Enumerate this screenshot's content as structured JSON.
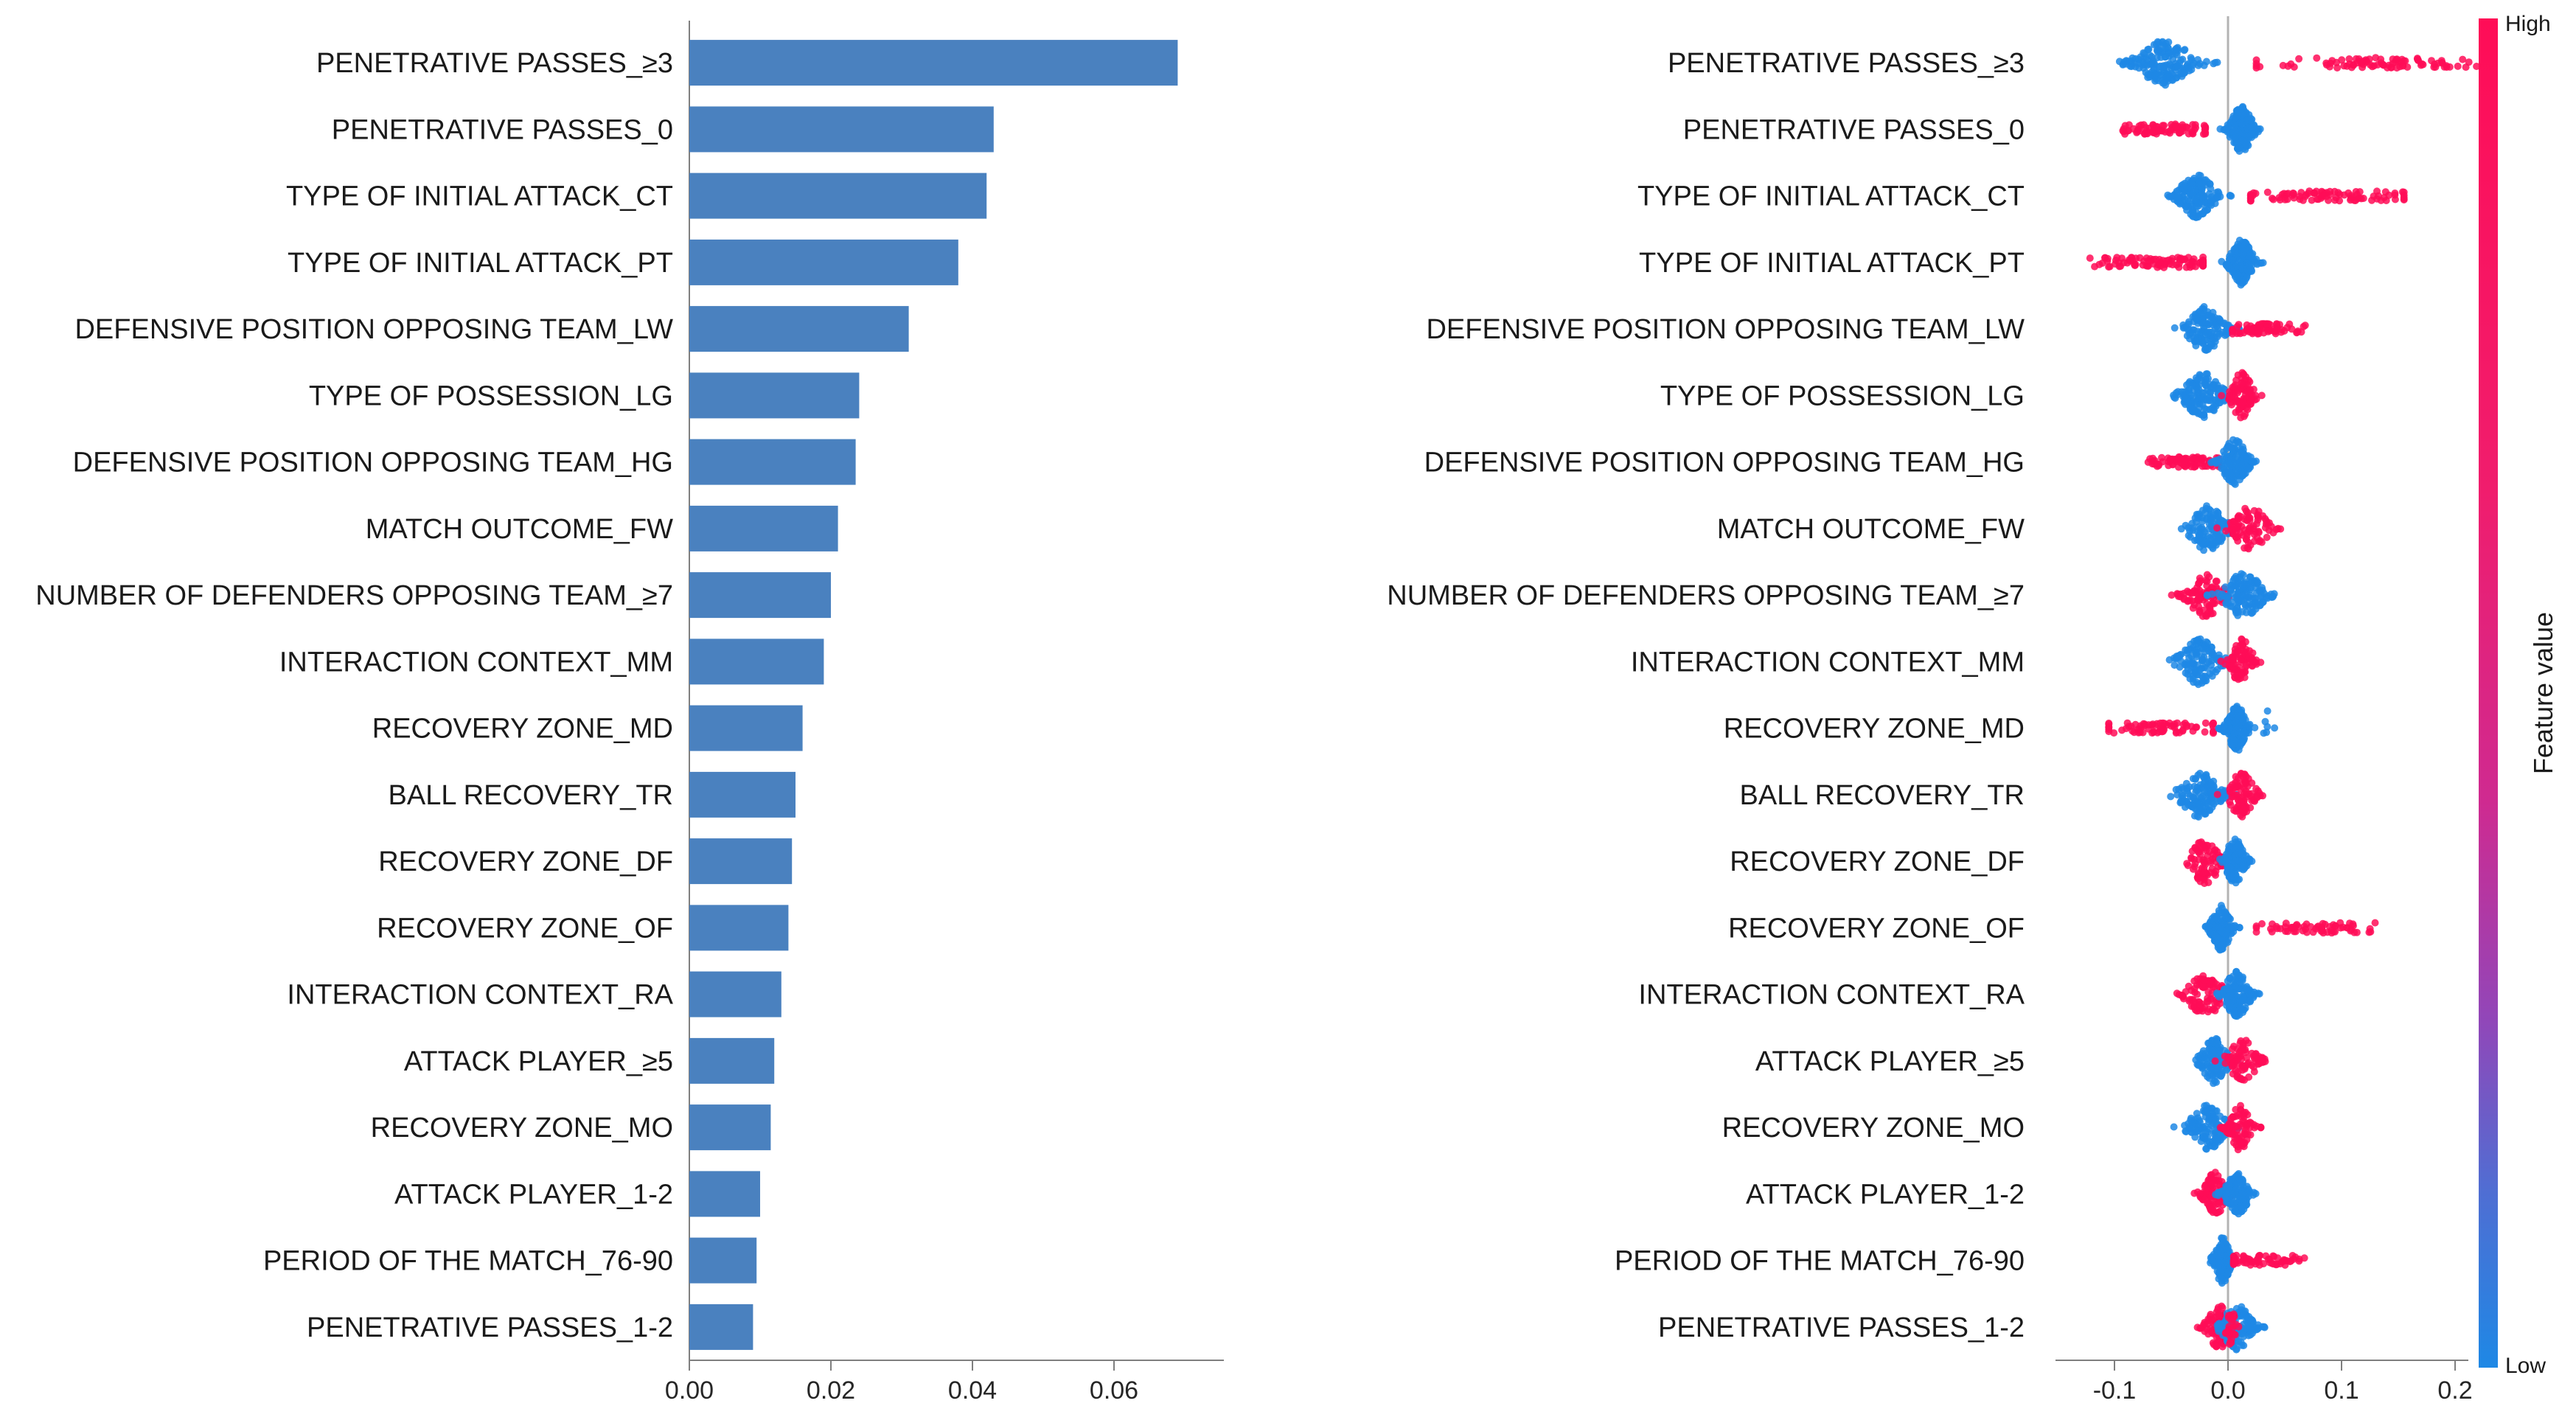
{
  "figure": {
    "background": "#ffffff",
    "description": "SHAP feature importance bar chart (left) and SHAP beeswarm summary plot (right) with feature-value colorbar"
  },
  "features": [
    "PENETRATIVE PASSES_≥3",
    "PENETRATIVE PASSES_0",
    "TYPE OF INITIAL ATTACK_CT",
    "TYPE OF INITIAL ATTACK_PT",
    "DEFENSIVE POSITION OPPOSING TEAM_LW",
    "TYPE OF POSSESSION_LG",
    "DEFENSIVE POSITION OPPOSING TEAM_HG",
    "MATCH OUTCOME_FW",
    "NUMBER OF DEFENDERS OPPOSING TEAM_≥7",
    "INTERACTION CONTEXT_MM",
    "RECOVERY ZONE_MD",
    "BALL RECOVERY_TR",
    "RECOVERY ZONE_DF",
    "RECOVERY ZONE_OF",
    "INTERACTION CONTEXT_RA",
    "ATTACK PLAYER_≥5",
    "RECOVERY ZONE_MO",
    "ATTACK PLAYER_1-2",
    "PERIOD OF THE MATCH_76-90",
    "PENETRATIVE PASSES_1-2"
  ],
  "chart_data": [
    {
      "type": "bar",
      "orientation": "horizontal",
      "title": "",
      "xlabel": "",
      "ylabel": "",
      "categories": [
        "PENETRATIVE PASSES_≥3",
        "PENETRATIVE PASSES_0",
        "TYPE OF INITIAL ATTACK_CT",
        "TYPE OF INITIAL ATTACK_PT",
        "DEFENSIVE POSITION OPPOSING TEAM_LW",
        "TYPE OF POSSESSION_LG",
        "DEFENSIVE POSITION OPPOSING TEAM_HG",
        "MATCH OUTCOME_FW",
        "NUMBER OF DEFENDERS OPPOSING TEAM_≥7",
        "INTERACTION CONTEXT_MM",
        "RECOVERY ZONE_MD",
        "BALL RECOVERY_TR",
        "RECOVERY ZONE_DF",
        "RECOVERY ZONE_OF",
        "INTERACTION CONTEXT_RA",
        "ATTACK PLAYER_≥5",
        "RECOVERY ZONE_MO",
        "ATTACK PLAYER_1-2",
        "PERIOD OF THE MATCH_76-90",
        "PENETRATIVE PASSES_1-2"
      ],
      "values": [
        0.069,
        0.043,
        0.042,
        0.038,
        0.031,
        0.024,
        0.0235,
        0.021,
        0.02,
        0.019,
        0.016,
        0.015,
        0.0145,
        0.014,
        0.013,
        0.012,
        0.0115,
        0.01,
        0.0095,
        0.009
      ],
      "xticks": [
        "0.00",
        "0.02",
        "0.04",
        "0.06"
      ],
      "xtick_values": [
        0,
        0.02,
        0.04,
        0.06
      ],
      "xlim": [
        0,
        0.074
      ],
      "bar_color": "#4a81bf",
      "grid": false
    },
    {
      "type": "scatter",
      "subtype": "shap-beeswarm",
      "title": "",
      "xlabel": "",
      "categories": [
        "PENETRATIVE PASSES_≥3",
        "PENETRATIVE PASSES_0",
        "TYPE OF INITIAL ATTACK_CT",
        "TYPE OF INITIAL ATTACK_PT",
        "DEFENSIVE POSITION OPPOSING TEAM_LW",
        "TYPE OF POSSESSION_LG",
        "DEFENSIVE POSITION OPPOSING TEAM_HG",
        "MATCH OUTCOME_FW",
        "NUMBER OF DEFENDERS OPPOSING TEAM_≥7",
        "INTERACTION CONTEXT_MM",
        "RECOVERY ZONE_MD",
        "BALL RECOVERY_TR",
        "RECOVERY ZONE_DF",
        "RECOVERY ZONE_OF",
        "INTERACTION CONTEXT_RA",
        "ATTACK PLAYER_≥5",
        "RECOVERY ZONE_MO",
        "ATTACK PLAYER_1-2",
        "PERIOD OF THE MATCH_76-90",
        "PENETRATIVE PASSES_1-2"
      ],
      "xticks": [
        "-0.1",
        "0.0",
        "0.1",
        "0.2"
      ],
      "xtick_values": [
        -0.1,
        0,
        0.1,
        0.2
      ],
      "xlim": [
        -0.15,
        0.235
      ],
      "colors": {
        "high": "#ff0d57",
        "low": "#1e88e5"
      },
      "clusters": [
        [
          {
            "value": "low",
            "type": "blob",
            "c": -0.055,
            "s": 0.017,
            "n": 170
          },
          {
            "value": "high",
            "type": "line",
            "c": 0.135,
            "n": 95,
            "min": 0.025,
            "max": 0.225
          }
        ],
        [
          {
            "value": "high",
            "type": "line",
            "c": -0.055,
            "n": 85,
            "min": -0.095,
            "max": -0.02
          },
          {
            "value": "low",
            "type": "blob",
            "c": 0.012,
            "s": 0.007,
            "n": 170
          }
        ],
        [
          {
            "value": "low",
            "type": "blob",
            "c": -0.027,
            "s": 0.011,
            "n": 160
          },
          {
            "value": "high",
            "type": "line",
            "c": 0.085,
            "n": 95,
            "min": 0.02,
            "max": 0.155
          }
        ],
        [
          {
            "value": "high",
            "type": "line",
            "c": -0.06,
            "n": 95,
            "min": -0.135,
            "max": -0.022
          },
          {
            "value": "low",
            "type": "blob",
            "c": 0.012,
            "s": 0.007,
            "n": 160
          }
        ],
        [
          {
            "value": "low",
            "type": "blob",
            "c": -0.02,
            "s": 0.011,
            "n": 140
          },
          {
            "value": "high",
            "type": "line",
            "c": 0.028,
            "n": 75,
            "min": 0.004,
            "max": 0.068
          }
        ],
        [
          {
            "value": "low",
            "type": "blob",
            "c": -0.022,
            "s": 0.012,
            "n": 140
          },
          {
            "value": "high",
            "type": "blob",
            "c": 0.012,
            "s": 0.007,
            "n": 90
          }
        ],
        [
          {
            "value": "high",
            "type": "line",
            "c": -0.035,
            "n": 85,
            "min": -0.075,
            "max": -0.008
          },
          {
            "value": "low",
            "type": "blob",
            "c": 0.006,
            "s": 0.008,
            "n": 150
          }
        ],
        [
          {
            "value": "low",
            "type": "blob",
            "c": -0.018,
            "s": 0.011,
            "n": 130
          },
          {
            "value": "high",
            "type": "blob",
            "c": 0.02,
            "s": 0.011,
            "n": 85
          }
        ],
        [
          {
            "value": "high",
            "type": "blob",
            "c": -0.02,
            "s": 0.011,
            "n": 95
          },
          {
            "value": "low",
            "type": "blob",
            "c": 0.014,
            "s": 0.012,
            "n": 130,
            "max": 0.062
          }
        ],
        [
          {
            "value": "low",
            "type": "blob",
            "c": -0.025,
            "s": 0.012,
            "n": 130
          },
          {
            "value": "high",
            "type": "blob",
            "c": 0.012,
            "s": 0.007,
            "n": 85
          }
        ],
        [
          {
            "value": "high",
            "type": "line",
            "c": -0.055,
            "n": 75,
            "min": -0.105,
            "max": -0.013
          },
          {
            "value": "low",
            "type": "blob",
            "c": 0.008,
            "s": 0.006,
            "n": 160
          },
          {
            "value": "low",
            "type": "blob",
            "c": 0.033,
            "s": 0.003,
            "n": 6
          }
        ],
        [
          {
            "value": "low",
            "type": "blob",
            "c": -0.025,
            "s": 0.012,
            "n": 130
          },
          {
            "value": "high",
            "type": "blob",
            "c": 0.012,
            "s": 0.008,
            "n": 85
          }
        ],
        [
          {
            "value": "high",
            "type": "blob",
            "c": -0.02,
            "s": 0.009,
            "n": 85
          },
          {
            "value": "low",
            "type": "blob",
            "c": 0.006,
            "s": 0.006,
            "n": 150
          }
        ],
        [
          {
            "value": "low",
            "type": "blob",
            "c": -0.006,
            "s": 0.006,
            "n": 150
          },
          {
            "value": "high",
            "type": "line",
            "c": 0.08,
            "n": 65,
            "min": 0.025,
            "max": 0.135
          }
        ],
        [
          {
            "value": "high",
            "type": "blob",
            "c": -0.02,
            "s": 0.011,
            "n": 95
          },
          {
            "value": "low",
            "type": "blob",
            "c": 0.008,
            "s": 0.008,
            "n": 140
          }
        ],
        [
          {
            "value": "low",
            "type": "blob",
            "c": -0.012,
            "s": 0.008,
            "n": 130
          },
          {
            "value": "high",
            "type": "blob",
            "c": 0.013,
            "s": 0.009,
            "n": 85
          }
        ],
        [
          {
            "value": "low",
            "type": "blob",
            "c": -0.018,
            "s": 0.011,
            "n": 130
          },
          {
            "value": "high",
            "type": "blob",
            "c": 0.01,
            "s": 0.007,
            "n": 85
          }
        ],
        [
          {
            "value": "high",
            "type": "blob",
            "c": -0.012,
            "s": 0.007,
            "n": 95
          },
          {
            "value": "low",
            "type": "blob",
            "c": 0.008,
            "s": 0.007,
            "n": 130
          }
        ],
        [
          {
            "value": "low",
            "type": "blob",
            "c": -0.005,
            "s": 0.005,
            "n": 140
          },
          {
            "value": "high",
            "type": "line",
            "c": 0.03,
            "n": 65,
            "min": 0.005,
            "max": 0.075
          }
        ],
        [
          {
            "value": "high",
            "type": "blob",
            "c": -0.008,
            "s": 0.007,
            "n": 85
          },
          {
            "value": "low",
            "type": "blob",
            "c": 0.008,
            "s": 0.009,
            "n": 130
          },
          {
            "value": "high",
            "type": "blob",
            "c": 0.002,
            "s": 0.003,
            "n": 25
          }
        ]
      ]
    }
  ],
  "colorbar": {
    "label": "Feature value",
    "high": "High",
    "low": "Low",
    "high_color": "#ff0d57",
    "low_color": "#1e88e5"
  }
}
